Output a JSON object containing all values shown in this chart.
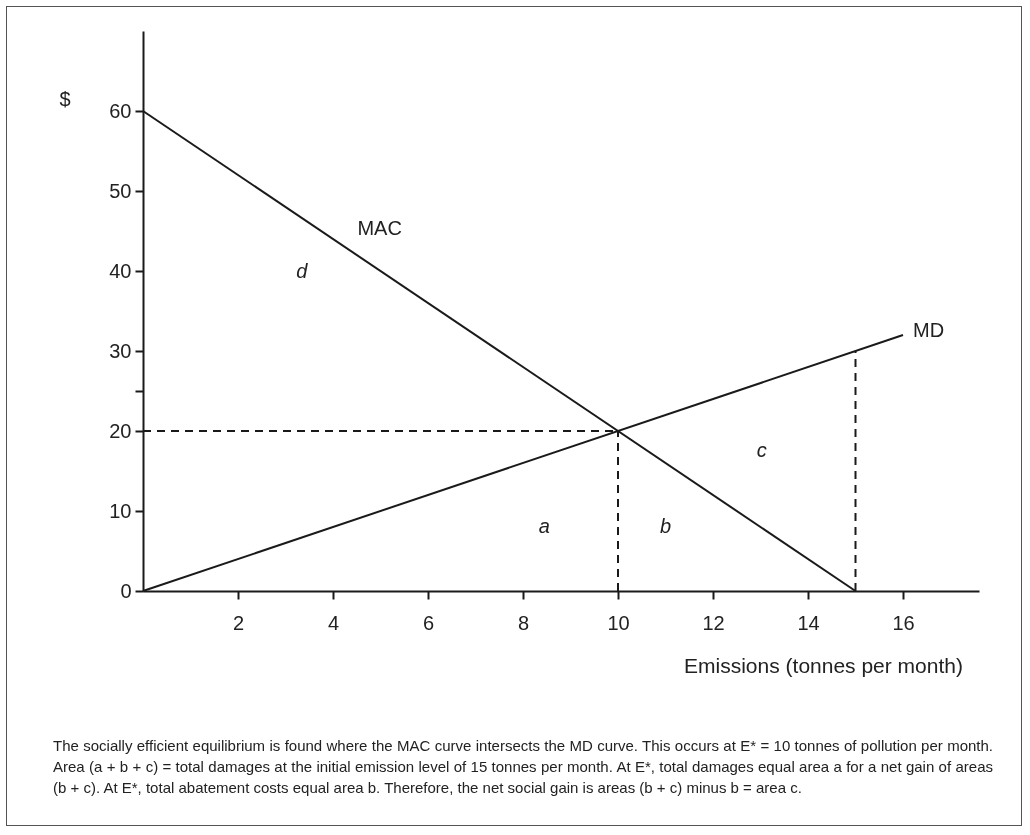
{
  "chart_data": {
    "type": "line",
    "ylabel": "$",
    "xlabel": "Emissions (tonnes per month)",
    "xlim": [
      0,
      17.6
    ],
    "ylim": [
      0,
      70
    ],
    "xticks": [
      2,
      4,
      6,
      8,
      10,
      12,
      14,
      16
    ],
    "yticks": [
      0,
      10,
      20,
      {
        "value": 25,
        "label": null
      },
      30,
      40,
      50,
      60
    ],
    "grid": false,
    "marker": "none",
    "series": [
      {
        "name": "MAC",
        "color": "#1a1a1a",
        "x": [
          0,
          15
        ],
        "values": [
          60,
          0
        ],
        "line_style": "solid"
      },
      {
        "name": "MD",
        "color": "#1a1a1a",
        "x": [
          0,
          16
        ],
        "values": [
          0,
          32
        ],
        "line_style": "solid"
      },
      {
        "color": "#1a1a1a",
        "x": [
          0,
          10
        ],
        "values": [
          20,
          20
        ],
        "line_style": "dashed"
      },
      {
        "color": "#1a1a1a",
        "x": [
          10,
          10
        ],
        "values": [
          0,
          20
        ],
        "line_style": "dashed"
      },
      {
        "color": "#1a1a1a",
        "x": [
          15,
          15
        ],
        "values": [
          0,
          30
        ],
        "line_style": "dashed"
      }
    ],
    "annotations": [
      "d",
      "a",
      "b",
      "c",
      "The socially efficient equilibrium is found where the MAC curve intersects the MD curve. This occurs at E* = 10 tonnes of pollution per month. Area (a + b + c) = total damages at the initial emission level of 15 tonnes per month. At E*, total damages equal area a for a net gain of areas (b + c). At E*, total abatement costs equal area b. Therefore, the net social gain is areas (b + c) minus b = area c."
    ]
  }
}
